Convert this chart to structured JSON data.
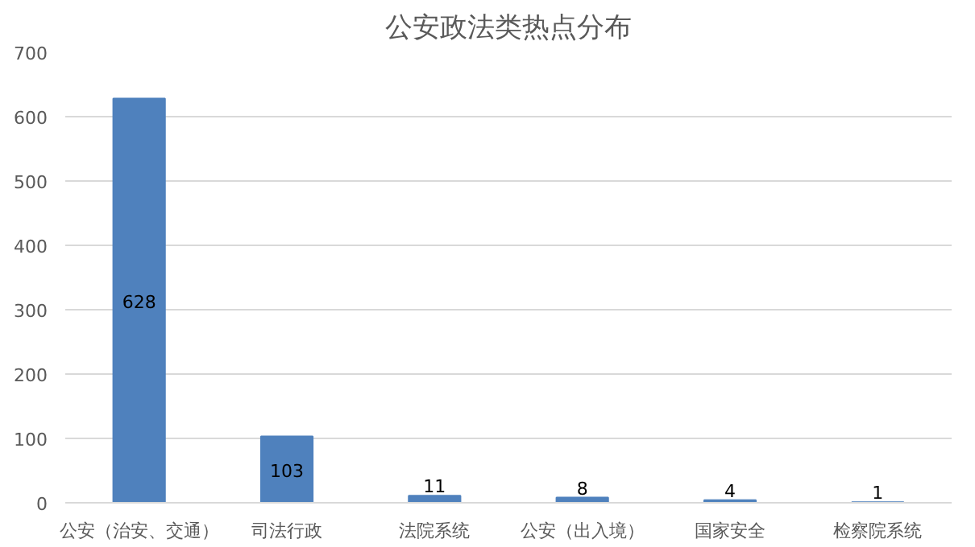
{
  "chart_data": {
    "type": "bar",
    "title": "公安政法类热点分布",
    "categories": [
      "公安（治安、交通）",
      "司法行政",
      "法院系统",
      "公安（出入境）",
      "国家安全",
      "检察院系统"
    ],
    "values": [
      628,
      103,
      11,
      8,
      4,
      1
    ],
    "color": "#4f81bd",
    "ylim": [
      0,
      700
    ],
    "yticks": [
      0,
      100,
      200,
      300,
      400,
      500,
      600,
      700
    ],
    "grid": "y",
    "data_labels": true
  }
}
